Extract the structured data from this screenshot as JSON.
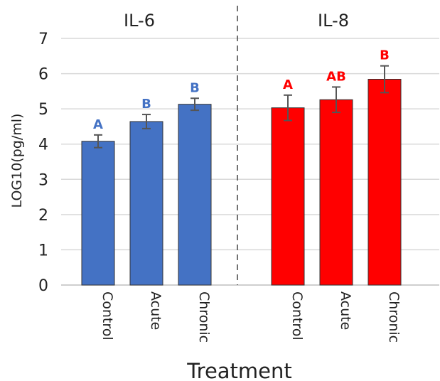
{
  "chart_data": {
    "type": "bar",
    "xlabel": "Treatment",
    "ylabel": "LOG10(pg/ml)",
    "ylim": [
      0,
      7
    ],
    "yticks": [
      0,
      1,
      2,
      3,
      4,
      5,
      6,
      7
    ],
    "grid": true,
    "categories": [
      "Control",
      "Acute",
      "Chronic"
    ],
    "panels": [
      {
        "title": "IL-6",
        "color": "#4472C4",
        "label_color": "#4472C4",
        "values": [
          4.08,
          4.64,
          5.13
        ],
        "errors": [
          0.18,
          0.2,
          0.17
        ],
        "significance": [
          "A",
          "B",
          "B"
        ]
      },
      {
        "title": "IL-8",
        "color": "#FF0000",
        "label_color": "#FF0000",
        "values": [
          5.03,
          5.26,
          5.84
        ],
        "errors": [
          0.36,
          0.36,
          0.38
        ],
        "significance": [
          "A",
          "AB",
          "B"
        ]
      }
    ]
  }
}
